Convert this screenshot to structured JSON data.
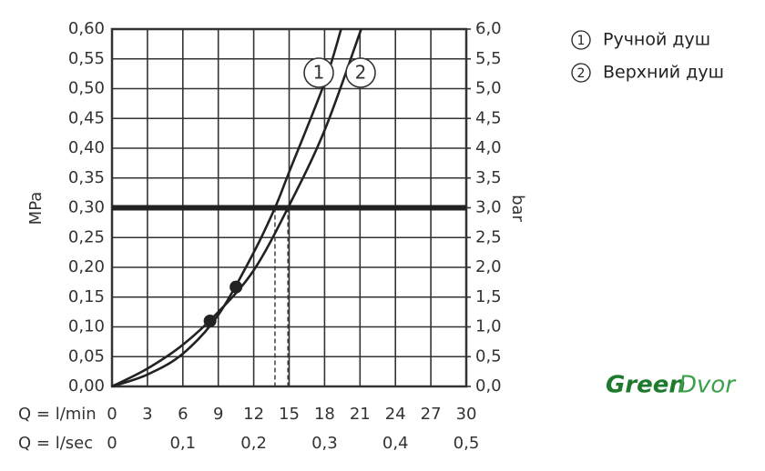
{
  "chart_data": {
    "type": "line",
    "y_label": "MPa",
    "y2_label": "bar",
    "x_label": "Q = l/min",
    "x2_label": "Q = l/sec",
    "xlim": [
      0,
      30
    ],
    "xticks": [
      0,
      3,
      6,
      9,
      12,
      15,
      18,
      21,
      24,
      27,
      30
    ],
    "x2lim": [
      0,
      0.5
    ],
    "x2ticks": [
      0,
      {
        "value": 0.1,
        "label": "0,1"
      },
      {
        "value": 0.2,
        "label": "0,2"
      },
      {
        "value": 0.3,
        "label": "0,3"
      },
      {
        "value": 0.4,
        "label": "0,4"
      },
      {
        "value": 0.5,
        "label": "0,5"
      }
    ],
    "ylim": [
      0,
      0.6
    ],
    "yticks": [
      {
        "value": 0,
        "label": "0,00"
      },
      {
        "value": 0.05,
        "label": "0,05"
      },
      {
        "value": 0.1,
        "label": "0,10"
      },
      {
        "value": 0.15,
        "label": "0,15"
      },
      {
        "value": 0.2,
        "label": "0,20"
      },
      {
        "value": 0.25,
        "label": "0,25"
      },
      {
        "value": 0.3,
        "label": "0,30"
      },
      {
        "value": 0.35,
        "label": "0,35"
      },
      {
        "value": 0.4,
        "label": "0,40"
      },
      {
        "value": 0.45,
        "label": "0,45"
      },
      {
        "value": 0.5,
        "label": "0,50"
      },
      {
        "value": 0.55,
        "label": "0,55"
      },
      {
        "value": 0.6,
        "label": "0,60"
      }
    ],
    "y2lim": [
      0,
      6
    ],
    "y2ticks": [
      {
        "value": 0,
        "label": "0,0"
      },
      {
        "value": 0.5,
        "label": "0,5"
      },
      {
        "value": 1,
        "label": "1,0"
      },
      {
        "value": 1.5,
        "label": "1,5"
      },
      {
        "value": 2,
        "label": "2,0"
      },
      {
        "value": 2.5,
        "label": "2,5"
      },
      {
        "value": 3,
        "label": "3,0"
      },
      {
        "value": 3.5,
        "label": "3,5"
      },
      {
        "value": 4,
        "label": "4,0"
      },
      {
        "value": 4.5,
        "label": "4,5"
      },
      {
        "value": 5,
        "label": "5,0"
      },
      {
        "value": 5.5,
        "label": "5,5"
      },
      {
        "value": 6,
        "label": "6,0"
      }
    ],
    "grid": true,
    "reference_line": 0.3,
    "reference_x": [
      13.8,
      14.9
    ],
    "series": [
      {
        "name": "Ручной душ",
        "number": "1",
        "color": "#222222",
        "x": [
          0,
          3,
          6,
          9,
          12,
          13.8,
          15,
          18,
          19.4
        ],
        "values": [
          0,
          0.02,
          0.055,
          0.12,
          0.225,
          0.3,
          0.36,
          0.51,
          0.6
        ]
      },
      {
        "name": "Верхний душ",
        "number": "2",
        "color": "#222222",
        "x": [
          0,
          3,
          6,
          9,
          12,
          14.9,
          18,
          21.1
        ],
        "values": [
          0,
          0.03,
          0.07,
          0.125,
          0.195,
          0.3,
          0.43,
          0.6
        ]
      }
    ],
    "points": {
      "x": [
        8.3,
        10.5
      ],
      "values": [
        0.11,
        0.167
      ]
    },
    "watermark": [
      "Green",
      "Dvor"
    ]
  }
}
